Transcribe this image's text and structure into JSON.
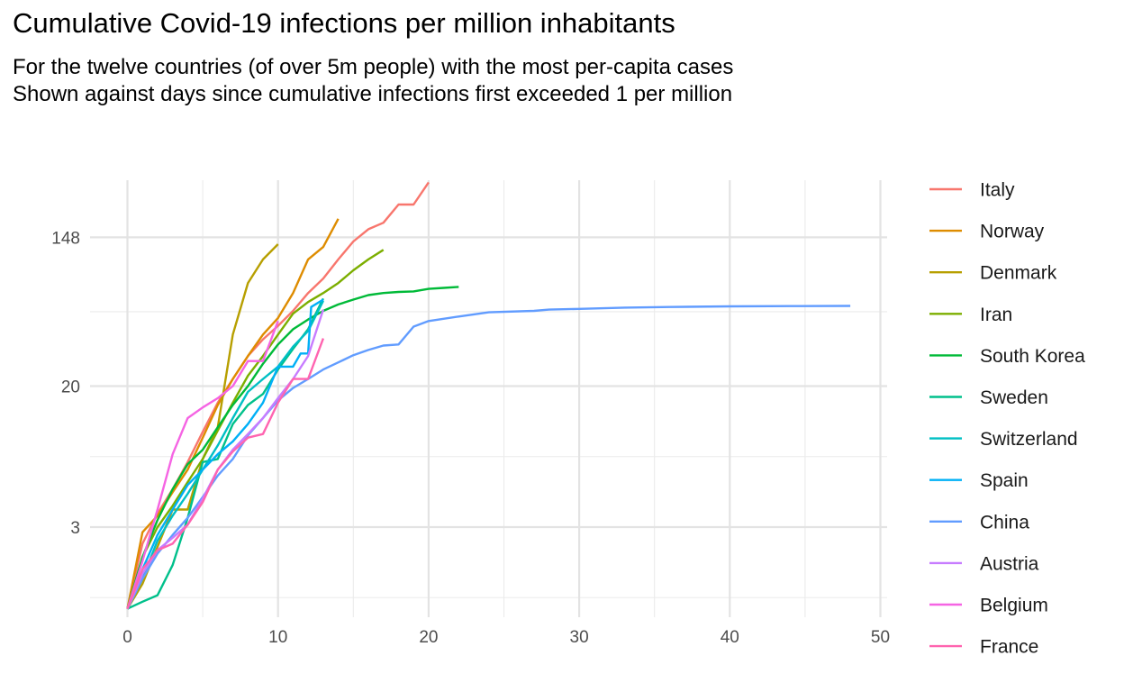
{
  "chart_data": {
    "type": "line",
    "title": "Cumulative Covid-19 infections per million inhabitants",
    "subtitle": [
      "For the twelve countries (of over 5m people) with the most per-capita cases",
      "Shown against days since cumulative infections first exceeded 1 per million"
    ],
    "xlabel": "",
    "ylabel": "",
    "x_scale": "linear",
    "y_scale": "log",
    "xlim": [
      0,
      50
    ],
    "ylim": [
      0.85,
      260
    ],
    "x_ticks": [
      0,
      10,
      20,
      30,
      40,
      50
    ],
    "y_ticks": [
      3,
      20,
      148
    ],
    "y_tick_labels": [
      "3",
      "20",
      "148"
    ],
    "grid": true,
    "legend_position": "right",
    "series": [
      {
        "name": "Italy",
        "color": "#F8766D",
        "x": [
          0,
          1,
          2,
          3,
          4,
          5,
          6,
          7,
          8,
          9,
          10,
          11,
          12,
          13,
          14,
          15,
          16,
          17,
          18,
          19,
          20
        ],
        "y": [
          1,
          2.4,
          3.6,
          5,
          7.2,
          10.8,
          16,
          22,
          30,
          37.5,
          45,
          55,
          70,
          85,
          110,
          140,
          165,
          180,
          230,
          230,
          310
        ]
      },
      {
        "name": "Norway",
        "color": "#DE8C00",
        "x": [
          0,
          1,
          2,
          3,
          4,
          5,
          6,
          7,
          8,
          9,
          10,
          11,
          12,
          13,
          14
        ],
        "y": [
          1,
          2.8,
          3.5,
          4.8,
          6.5,
          10,
          15.5,
          22,
          30,
          40,
          50,
          70,
          110,
          130,
          190
        ]
      },
      {
        "name": "Denmark",
        "color": "#B79F00",
        "x": [
          0,
          1,
          2,
          3,
          4,
          5,
          6,
          7,
          8,
          9,
          10
        ],
        "y": [
          1,
          1.4,
          2.3,
          3.8,
          3.8,
          7.5,
          11.5,
          40,
          80,
          110,
          135
        ]
      },
      {
        "name": "Iran",
        "color": "#7CAE00",
        "x": [
          0,
          1,
          2,
          3,
          4,
          5,
          6,
          7,
          8,
          9,
          10,
          11,
          12,
          13,
          14,
          15,
          16,
          17
        ],
        "y": [
          1,
          2,
          3,
          4,
          5.5,
          7.5,
          11,
          16,
          23,
          30,
          40,
          53,
          62,
          70,
          80,
          95,
          110,
          125
        ]
      },
      {
        "name": "South Korea",
        "color": "#00BA38",
        "x": [
          0,
          1,
          2,
          3,
          4,
          5,
          6,
          7,
          8,
          9,
          10,
          11,
          12,
          13,
          14,
          15,
          16,
          17,
          18,
          19,
          20,
          21,
          22
        ],
        "y": [
          1,
          2,
          3.3,
          5,
          7,
          8.5,
          11.5,
          15.5,
          20,
          27,
          35,
          43,
          49,
          55,
          60,
          64,
          68,
          70,
          71,
          71.5,
          74,
          75,
          76
        ]
      },
      {
        "name": "Sweden",
        "color": "#00C08B",
        "x": [
          0,
          1,
          2,
          3,
          4,
          5,
          6,
          7,
          8,
          9,
          10,
          11,
          12,
          13
        ],
        "y": [
          1,
          1.1,
          1.2,
          1.8,
          3.4,
          7.2,
          7.5,
          12,
          15.5,
          18,
          25,
          33,
          43,
          65
        ]
      },
      {
        "name": "Switzerland",
        "color": "#00BFC4",
        "x": [
          0,
          1,
          2,
          3,
          4,
          5,
          6,
          7,
          8,
          9,
          10,
          11,
          12,
          13
        ],
        "y": [
          1,
          1.5,
          2.5,
          3.5,
          4.7,
          6.5,
          9,
          13,
          18.5,
          22,
          26,
          34,
          42,
          63
        ]
      },
      {
        "name": "Spain",
        "color": "#00B0F6",
        "x": [
          0,
          1,
          2,
          3,
          4,
          5,
          6,
          7,
          8,
          9,
          10,
          11,
          11.5,
          12,
          12.2,
          13
        ],
        "y": [
          1,
          1.7,
          2.7,
          3.8,
          5.3,
          6.5,
          8,
          9.5,
          12,
          16,
          26,
          26,
          31,
          31,
          58,
          64
        ]
      },
      {
        "name": "China",
        "color": "#619CFF",
        "x": [
          0,
          1,
          2,
          3,
          4,
          5,
          6,
          7,
          8,
          9,
          10,
          11,
          12,
          13,
          14,
          15,
          16,
          17,
          18,
          19,
          20,
          22,
          24,
          27,
          28,
          30,
          33,
          36,
          40,
          44,
          48
        ],
        "y": [
          1,
          1.5,
          2.1,
          2.7,
          3.4,
          4.5,
          6,
          7.5,
          10.3,
          13,
          16.5,
          19.5,
          22,
          25,
          27.5,
          30.3,
          32.5,
          34.5,
          35,
          44.5,
          48,
          51,
          54,
          55,
          56,
          56.5,
          57.5,
          58,
          58.5,
          58.7,
          58.8
        ]
      },
      {
        "name": "Austria",
        "color": "#C77CFF",
        "x": [
          0,
          1,
          2,
          3,
          4,
          5,
          6,
          7,
          8,
          9,
          10,
          11,
          12,
          13
        ],
        "y": [
          1,
          1.6,
          2.2,
          2.6,
          3.1,
          4.4,
          6.5,
          8.5,
          10.5,
          13,
          17,
          22,
          30,
          56
        ]
      },
      {
        "name": "Belgium",
        "color": "#F564E3",
        "x": [
          0,
          1,
          2,
          3,
          4,
          5,
          6,
          7,
          8,
          9,
          10
        ],
        "y": [
          1,
          1.9,
          3.8,
          8,
          13,
          15,
          17,
          20,
          28,
          28,
          48
        ]
      },
      {
        "name": "France",
        "color": "#FF64B0",
        "x": [
          0,
          1,
          2,
          3,
          4,
          5,
          6,
          7,
          8,
          9,
          10,
          11,
          12,
          13
        ],
        "y": [
          1,
          1.7,
          2.2,
          2.4,
          3.1,
          4.2,
          6.5,
          8.3,
          10,
          10.5,
          16,
          22,
          22,
          38
        ]
      }
    ]
  }
}
